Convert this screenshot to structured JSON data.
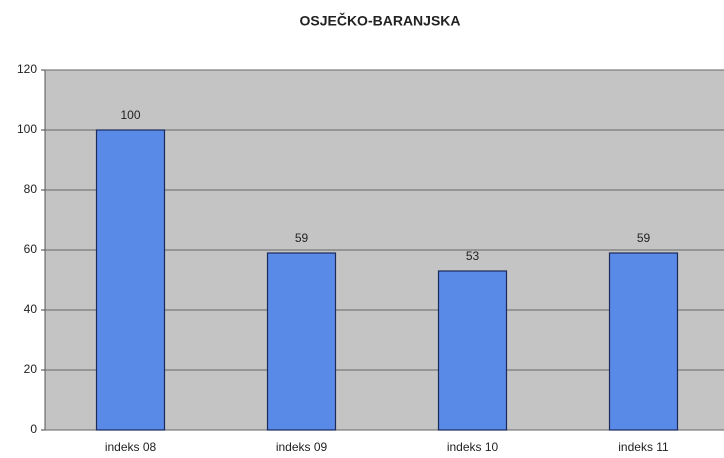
{
  "chart_data": {
    "type": "bar",
    "title": "OSJEČKO-BARANJSKA",
    "categories": [
      "indeks 08",
      "indeks 09",
      "indeks 10",
      "indeks 11"
    ],
    "values": [
      100,
      59,
      53,
      59
    ],
    "color": "#5a8ae8",
    "ylim": [
      0,
      120
    ],
    "yticks": [
      0,
      20,
      40,
      60,
      80,
      100,
      120
    ],
    "grid": true
  }
}
